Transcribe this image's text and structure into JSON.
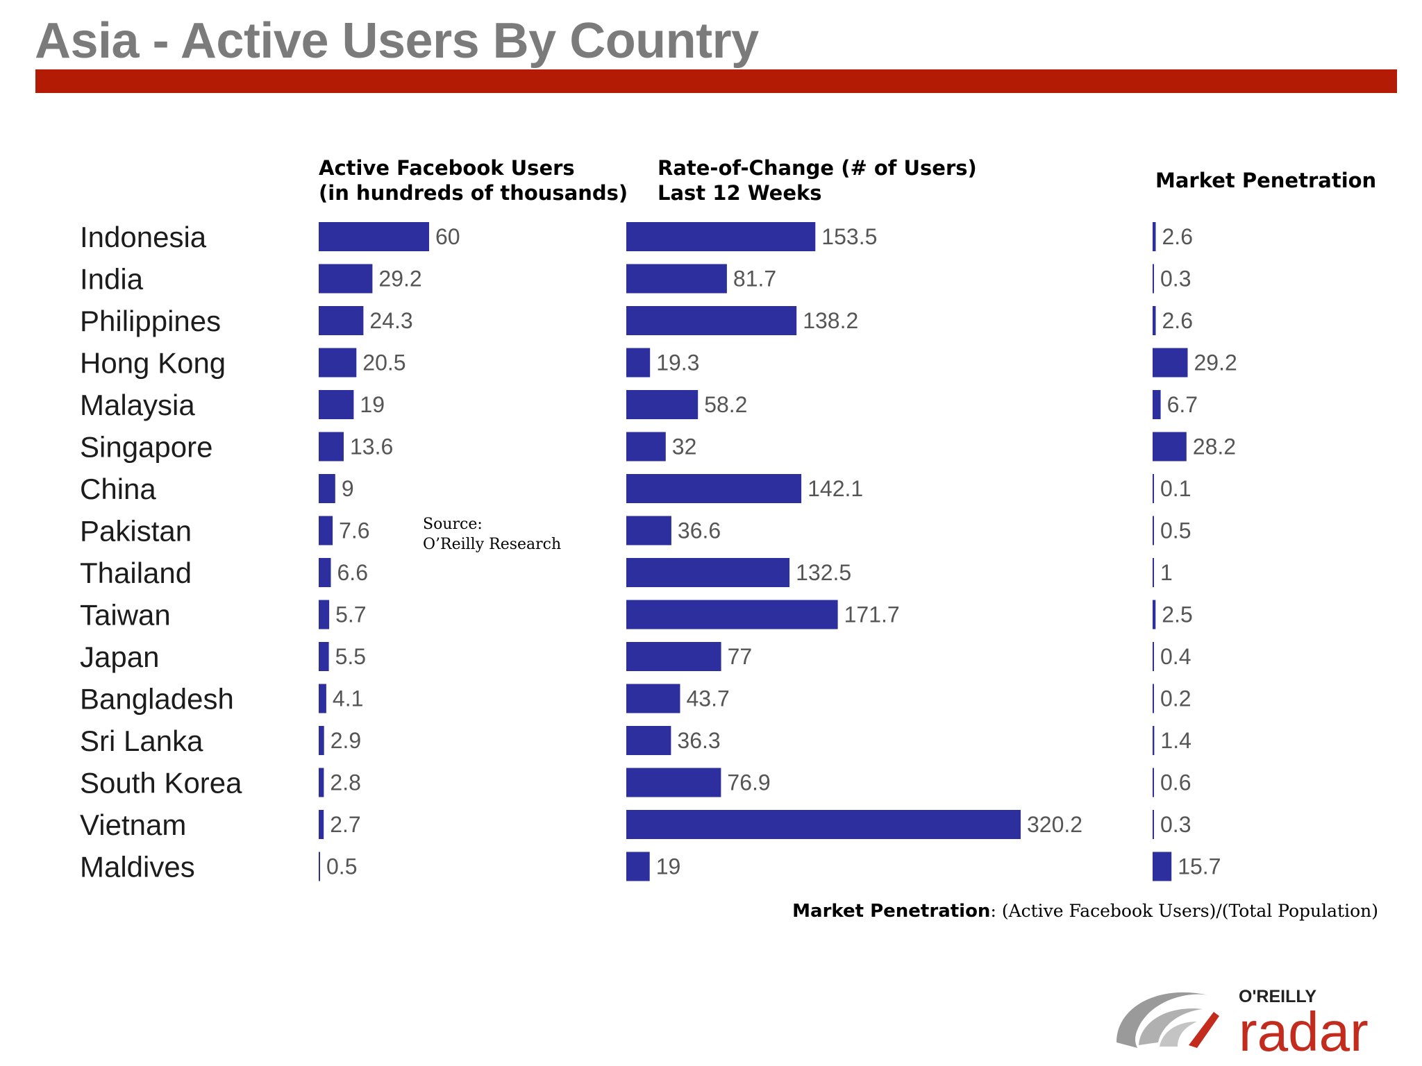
{
  "slide": {
    "title": "Asia - Active Users By Country",
    "source_label": "Source:",
    "source_name": "O’Reilly Research",
    "footnote_term": "Market Penetration",
    "footnote_def": ":  (Active Facebook Users)/(Total Population)",
    "logo_brand": "O'REILLY",
    "logo_product": "radar"
  },
  "colors": {
    "title": "#7b7b7b",
    "rule": "#b31b05",
    "bar": "#2e2f9f",
    "value_text": "#555555",
    "logo_red": "#c32b1d",
    "logo_gray": "#9a9a9a"
  },
  "chart_data": {
    "type": "bar",
    "orientation": "horizontal",
    "categories": [
      "Indonesia",
      "India",
      "Philippines",
      "Hong Kong",
      "Malaysia",
      "Singapore",
      "China",
      "Pakistan",
      "Thailand",
      "Taiwan",
      "Japan",
      "Bangladesh",
      "Sri Lanka",
      "South Korea",
      "Vietnam",
      "Maldives"
    ],
    "series": [
      {
        "title_line1": "Active Facebook Users",
        "title_line2": "(in hundreds of thousands)",
        "values": [
          60,
          29.2,
          24.3,
          20.5,
          19,
          13.6,
          9,
          7.6,
          6.6,
          5.7,
          5.5,
          4.1,
          2.9,
          2.8,
          2.7,
          0.5
        ],
        "labels": [
          "60",
          "29.2",
          "24.3",
          "20.5",
          "19",
          "13.6",
          "9",
          "7.6",
          "6.6",
          "5.7",
          "5.5",
          "4.1",
          "2.9",
          "2.8",
          "2.7",
          "0.5"
        ]
      },
      {
        "title_line1": "Rate-of-Change (# of Users)",
        "title_line2": "Last 12 Weeks",
        "values": [
          153.5,
          81.7,
          138.2,
          19.3,
          58.2,
          32,
          142.1,
          36.6,
          132.5,
          171.7,
          77,
          43.7,
          36.3,
          76.9,
          320.2,
          19
        ],
        "labels": [
          "153.5",
          "81.7",
          "138.2",
          "19.3",
          "58.2",
          "32",
          "142.1",
          "36.6",
          "132.5",
          "171.7",
          "77",
          "43.7",
          "36.3",
          "76.9",
          "320.2",
          "19"
        ]
      },
      {
        "title_line1": "Market Penetration",
        "values": [
          2.6,
          0.3,
          2.6,
          29.2,
          6.7,
          28.2,
          0.1,
          0.5,
          1,
          2.5,
          0.4,
          0.2,
          1.4,
          0.6,
          0.3,
          15.7
        ],
        "labels": [
          "2.6",
          "0.3",
          "2.6",
          "29.2",
          "6.7",
          "28.2",
          "0.1",
          "0.5",
          "1",
          "2.5",
          "0.4",
          "0.2",
          "1.4",
          "0.6",
          "0.3",
          "15.7"
        ]
      }
    ],
    "grid": false,
    "legend": "none"
  }
}
